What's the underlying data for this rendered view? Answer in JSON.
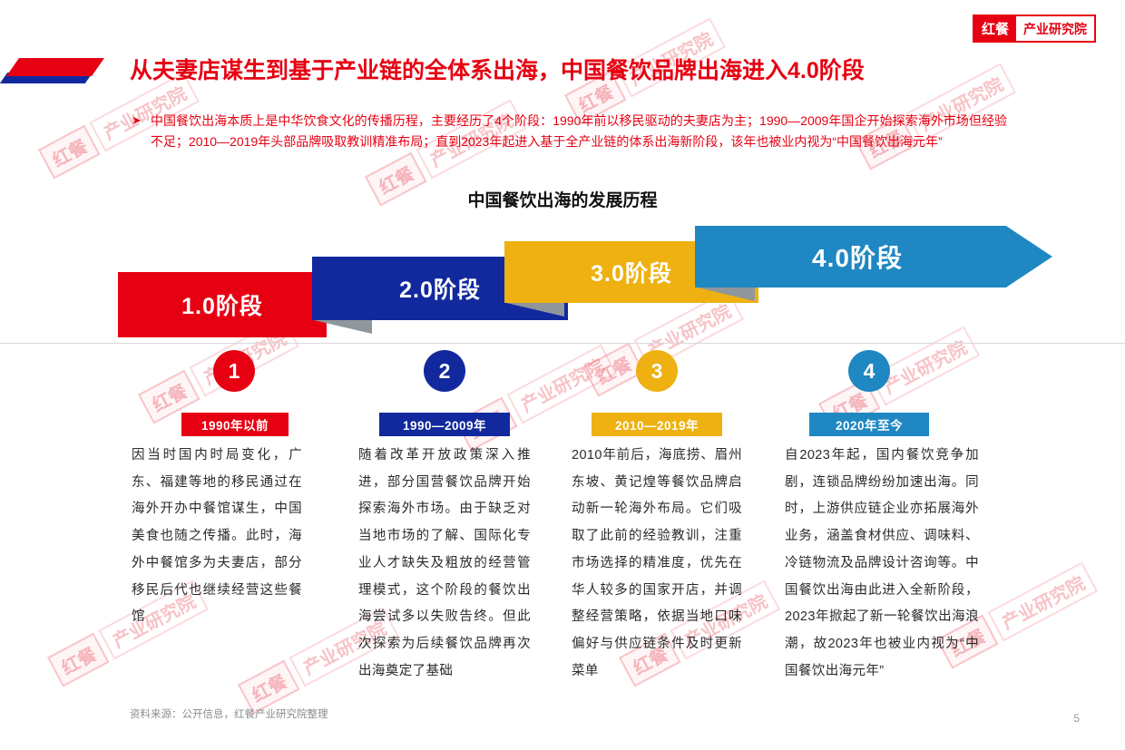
{
  "logo": {
    "badge": "红餐",
    "text": "产业研究院"
  },
  "watermark": {
    "badge": "红餐",
    "text": "产业研究院"
  },
  "title": "从夫妻店谋生到基于产业链的全体系出海，中国餐饮品牌出海进入4.0阶段",
  "intro": {
    "marker": "➤",
    "text": "中国餐饮出海本质上是中华饮食文化的传播历程，主要经历了4个阶段：1990年前以移民驱动的夫妻店为主；1990—2009年国企开始探索海外市场但经验不足；2010—2019年头部品牌吸取教训精准布局；直到2023年起进入基于全产业链的体系出海新阶段，该年也被业内视为“中国餐饮出海元年”"
  },
  "chart": {
    "title": "中国餐饮出海的发展历程",
    "type": "timeline",
    "stages": [
      {
        "banner": "1.0阶段",
        "number": "1",
        "period": "1990年以前",
        "color": "#e60012",
        "description": "因当时国内时局变化，广东、福建等地的移民通过在海外开办中餐馆谋生，中国美食也随之传播。此时，海外中餐馆多为夫妻店，部分移民后代也继续经营这些餐馆"
      },
      {
        "banner": "2.0阶段",
        "number": "2",
        "period": "1990—2009年",
        "color": "#12299d",
        "description": "随着改革开放政策深入推进，部分国营餐饮品牌开始探索海外市场。由于缺乏对当地市场的了解、国际化专业人才缺失及粗放的经营管理模式，这个阶段的餐饮出海尝试多以失败告终。但此次探索为后续餐饮品牌再次出海奠定了基础"
      },
      {
        "banner": "3.0阶段",
        "number": "3",
        "period": "2010—2019年",
        "color": "#eeb111",
        "description": "2010年前后，海底捞、眉州东坡、黄记煌等餐饮品牌启动新一轮海外布局。它们吸取了此前的经验教训，注重市场选择的精准度，优先在华人较多的国家开店，并调整经营策略，依据当地口味偏好与供应链条件及时更新菜单"
      },
      {
        "banner": "4.0阶段",
        "number": "4",
        "period": "2020年至今",
        "color": "#1f87c2",
        "description": "自2023年起，国内餐饮竞争加剧，连锁品牌纷纷加速出海。同时，上游供应链企业亦拓展海外业务，涵盖食材供应、调味料、冷链物流及品牌设计咨询等。中国餐饮出海由此进入全新阶段，2023年掀起了新一轮餐饮出海浪潮，故2023年也被业内视为“中国餐饮出海元年”"
      }
    ]
  },
  "footer": {
    "source": "资料来源：公开信息，红餐产业研究院整理",
    "page": "5"
  }
}
